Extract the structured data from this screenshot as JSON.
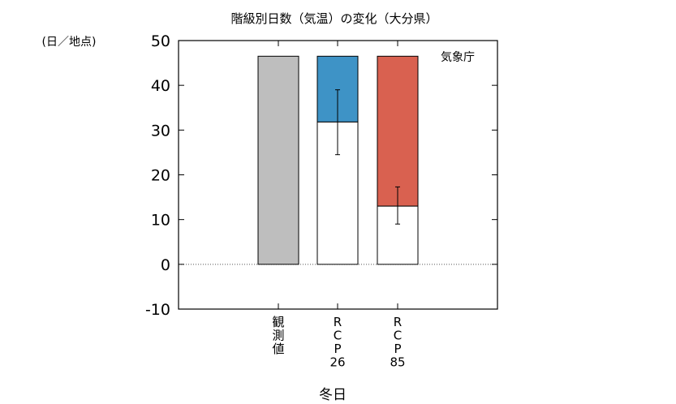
{
  "chart_data": {
    "type": "bar",
    "title": "階級別日数（気温）の変化（大分県）",
    "ylabel": "(日／地点)",
    "xlabel": "冬日",
    "annotation": "気象庁",
    "ylim": [
      -10,
      50
    ],
    "yticks": [
      -10,
      0,
      10,
      20,
      30,
      40,
      50
    ],
    "categories": [
      {
        "label_lines": [
          "観",
          "測",
          "値"
        ]
      },
      {
        "label_lines": [
          "R",
          "C",
          "P",
          "26"
        ]
      },
      {
        "label_lines": [
          "R",
          "C",
          "P",
          "85"
        ]
      }
    ],
    "series": [
      {
        "total": 46.5,
        "future": null,
        "err_low": null,
        "err_high": null,
        "color": "#bebebe"
      },
      {
        "total": 46.5,
        "future": 31.8,
        "err_low": 24.5,
        "err_high": 39.0,
        "color": "#3e93c6"
      },
      {
        "total": 46.5,
        "future": 13.0,
        "err_low": 9.0,
        "err_high": 17.3,
        "color": "#d96150"
      }
    ],
    "zero_line": "dotted",
    "grid": false
  }
}
